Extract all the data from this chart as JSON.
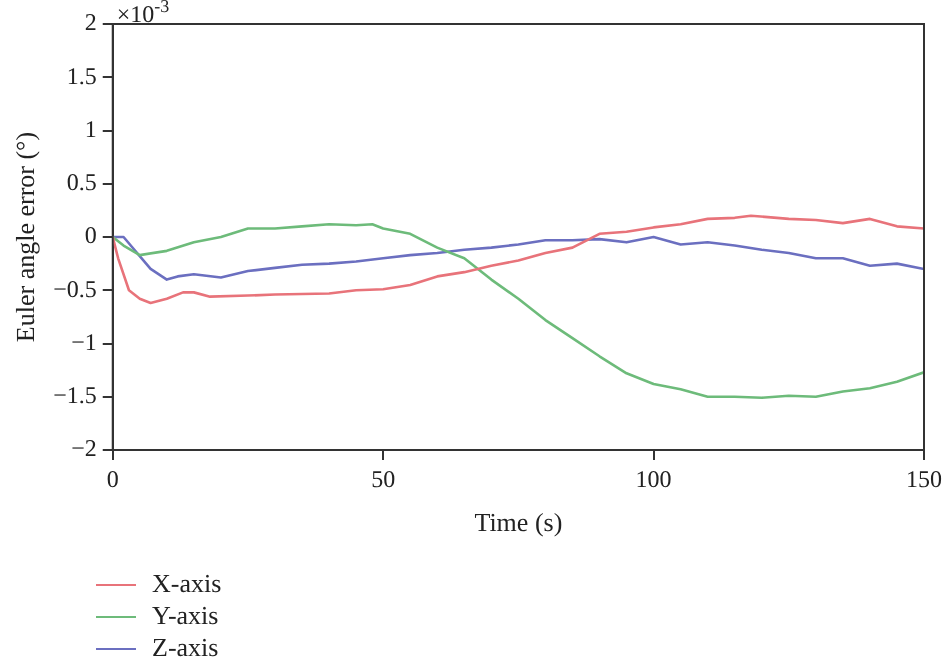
{
  "chart_data": {
    "type": "line",
    "xlabel": "Time (s)",
    "ylabel": "Euler angle error (°)",
    "annotations": [
      "×10$^{-3}$"
    ],
    "xlim": [
      0,
      150
    ],
    "xticks": [
      0,
      50,
      100,
      150
    ],
    "ylim": [
      -2,
      2
    ],
    "yticks": [
      -2,
      -1.5,
      -1,
      -0.5,
      0,
      0.5,
      1,
      1.5,
      2
    ],
    "grid": false,
    "legend": "bottom left",
    "marker": "none",
    "line_style": "solid",
    "series": [
      {
        "name": "X-axis",
        "color": "#e8737a",
        "x": [
          0,
          1,
          3,
          5,
          7,
          10,
          13,
          15,
          18,
          25,
          30,
          40,
          45,
          50,
          55,
          60,
          65,
          70,
          75,
          80,
          85,
          90,
          95,
          100,
          105,
          110,
          115,
          118,
          125,
          130,
          135,
          140,
          145,
          150
        ],
        "values": [
          0,
          -0.2,
          -0.5,
          -0.58,
          -0.62,
          -0.58,
          -0.52,
          -0.52,
          -0.56,
          -0.55,
          -0.54,
          -0.53,
          -0.5,
          -0.49,
          -0.45,
          -0.37,
          -0.33,
          -0.27,
          -0.22,
          -0.15,
          -0.1,
          0.03,
          0.05,
          0.09,
          0.12,
          0.17,
          0.18,
          0.2,
          0.17,
          0.16,
          0.13,
          0.17,
          0.1,
          0.08
        ]
      },
      {
        "name": "Y-axis",
        "color": "#6dbb7a",
        "x": [
          0,
          2,
          5,
          10,
          15,
          20,
          25,
          30,
          35,
          40,
          45,
          48,
          50,
          55,
          60,
          65,
          70,
          75,
          80,
          85,
          90,
          95,
          100,
          105,
          110,
          115,
          120,
          125,
          130,
          135,
          140,
          145,
          150
        ],
        "values": [
          0,
          -0.08,
          -0.17,
          -0.13,
          -0.05,
          0,
          0.08,
          0.08,
          0.1,
          0.12,
          0.11,
          0.12,
          0.08,
          0.03,
          -0.1,
          -0.2,
          -0.4,
          -0.58,
          -0.78,
          -0.95,
          -1.12,
          -1.28,
          -1.38,
          -1.43,
          -1.5,
          -1.5,
          -1.51,
          -1.49,
          -1.5,
          -1.45,
          -1.42,
          -1.36,
          -1.27
        ]
      },
      {
        "name": "Z-axis",
        "color": "#6b6fc0",
        "x": [
          0,
          2,
          4,
          7,
          10,
          12,
          15,
          20,
          25,
          30,
          35,
          40,
          45,
          50,
          55,
          60,
          65,
          70,
          75,
          80,
          85,
          90,
          95,
          100,
          105,
          110,
          115,
          120,
          125,
          130,
          135,
          140,
          145,
          150
        ],
        "values": [
          0,
          0,
          -0.12,
          -0.3,
          -0.4,
          -0.37,
          -0.35,
          -0.38,
          -0.32,
          -0.29,
          -0.26,
          -0.25,
          -0.23,
          -0.2,
          -0.17,
          -0.15,
          -0.12,
          -0.1,
          -0.07,
          -0.03,
          -0.03,
          -0.02,
          -0.05,
          0,
          -0.07,
          -0.05,
          -0.08,
          -0.12,
          -0.15,
          -0.2,
          -0.2,
          -0.27,
          -0.25,
          -0.3
        ]
      }
    ]
  }
}
